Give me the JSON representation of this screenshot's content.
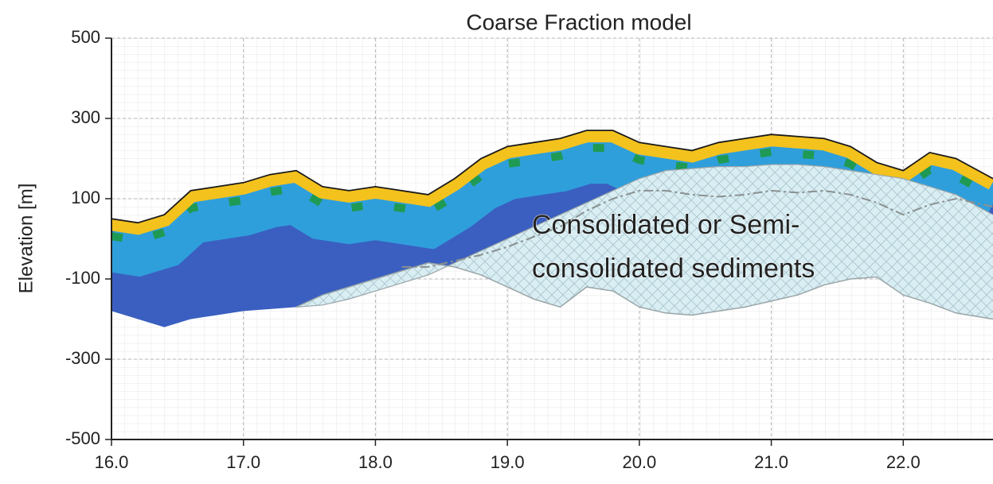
{
  "chart_data": {
    "type": "section",
    "title": "Coarse Fraction model",
    "ylabel": "Elevation [m]",
    "annotation": [
      "Consolidated  or Semi-",
      "consolidated sediments"
    ],
    "xlim": [
      16,
      22.68
    ],
    "ylim": [
      -500,
      500
    ],
    "xticks": [
      {
        "value": 16,
        "label": "16.0"
      },
      {
        "value": 17,
        "label": "17.0"
      },
      {
        "value": 18,
        "label": "18.0"
      },
      {
        "value": 19,
        "label": "19.0"
      },
      {
        "value": 20,
        "label": "20.0"
      },
      {
        "value": 21,
        "label": "21.0"
      },
      {
        "value": 22,
        "label": "22.0"
      }
    ],
    "yticks": [
      500,
      300,
      100,
      -100,
      -300,
      -500
    ],
    "grid": true,
    "x": [
      16.0,
      16.2,
      16.4,
      16.6,
      16.8,
      17.0,
      17.2,
      17.4,
      17.6,
      17.8,
      18.0,
      18.2,
      18.4,
      18.6,
      18.8,
      19.0,
      19.2,
      19.4,
      19.6,
      19.8,
      20.0,
      20.2,
      20.4,
      20.6,
      20.8,
      21.0,
      21.2,
      21.4,
      21.6,
      21.8,
      22.0,
      22.2,
      22.4,
      22.68
    ],
    "series": [
      {
        "color": "#1a1a1a",
        "values": [
          50,
          40,
          60,
          120,
          130,
          140,
          160,
          170,
          130,
          120,
          130,
          120,
          110,
          150,
          200,
          230,
          240,
          250,
          270,
          270,
          240,
          230,
          220,
          240,
          250,
          260,
          255,
          250,
          230,
          190,
          170,
          215,
          200,
          150
        ]
      },
      {
        "color": "#3a5fc0",
        "values": [
          -180,
          -200,
          -220,
          -200,
          -190,
          -180,
          -175,
          -170,
          -165,
          -150,
          -130,
          -110,
          -90,
          -60,
          -30,
          0,
          30,
          60,
          90,
          120,
          150,
          170,
          175,
          180,
          180,
          185,
          185,
          180,
          170,
          160,
          150,
          130,
          110,
          60
        ]
      },
      {
        "color": "#9aa5a8",
        "values": [
          null,
          null,
          null,
          null,
          null,
          null,
          null,
          -170,
          -165,
          -150,
          -130,
          -110,
          -90,
          -60,
          -30,
          0,
          30,
          60,
          90,
          120,
          150,
          170,
          175,
          180,
          180,
          185,
          185,
          180,
          170,
          160,
          150,
          130,
          110,
          60
        ]
      },
      {
        "color": "#9aa5a8",
        "values": [
          null,
          null,
          null,
          null,
          null,
          null,
          null,
          -170,
          -140,
          -120,
          -100,
          -80,
          -60,
          -70,
          -90,
          -120,
          -150,
          -170,
          -120,
          -130,
          -170,
          -185,
          -190,
          -180,
          -170,
          -155,
          -140,
          -115,
          -100,
          -95,
          -140,
          -160,
          -185,
          -200
        ]
      },
      {
        "color": "#8a9090",
        "values": [
          null,
          null,
          null,
          null,
          null,
          null,
          null,
          null,
          null,
          null,
          null,
          -70,
          -70,
          -55,
          -40,
          -20,
          5,
          30,
          70,
          100,
          120,
          120,
          110,
          105,
          110,
          120,
          115,
          120,
          110,
          90,
          60,
          85,
          100,
          80
        ]
      }
    ]
  }
}
